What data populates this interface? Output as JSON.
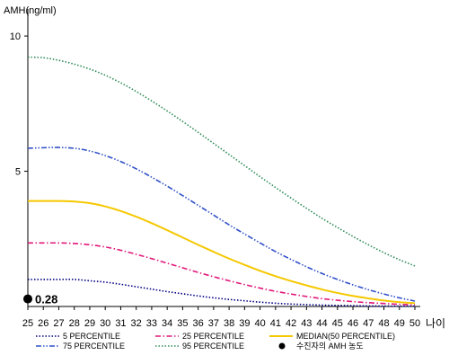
{
  "chart_data": {
    "type": "line",
    "ylabel": "AMH(ng/ml)",
    "xlabel": "나이",
    "ylim": [
      0,
      11
    ],
    "yticks": [
      5,
      10
    ],
    "xlim": [
      25,
      50
    ],
    "x": [
      25,
      26,
      27,
      28,
      29,
      30,
      31,
      32,
      33,
      34,
      35,
      36,
      37,
      38,
      39,
      40,
      41,
      42,
      43,
      44,
      45,
      46,
      47,
      48,
      49,
      50
    ],
    "grid": false,
    "legend_position": "bottom",
    "series": [
      {
        "name": "5 PERCENTILE",
        "color": "#000080",
        "dash": "dotted",
        "values": [
          1.0,
          1.0,
          1.0,
          1.0,
          0.95,
          0.9,
          0.82,
          0.73,
          0.64,
          0.55,
          0.47,
          0.39,
          0.32,
          0.26,
          0.21,
          0.16,
          0.12,
          0.09,
          0.07,
          0.05,
          0.04,
          0.03,
          0.02,
          0.015,
          0.01,
          0.01
        ]
      },
      {
        "name": "25 PERCENTILE",
        "color": "#e0187a",
        "dash": "dashdot",
        "values": [
          2.35,
          2.35,
          2.35,
          2.33,
          2.28,
          2.2,
          2.08,
          1.93,
          1.77,
          1.6,
          1.43,
          1.26,
          1.1,
          0.95,
          0.81,
          0.68,
          0.56,
          0.46,
          0.37,
          0.29,
          0.23,
          0.18,
          0.14,
          0.11,
          0.08,
          0.06
        ]
      },
      {
        "name": "MEDIAN(50 PERCENTILE)",
        "color": "#f5c800",
        "dash": "solid",
        "values": [
          3.9,
          3.9,
          3.9,
          3.88,
          3.82,
          3.7,
          3.53,
          3.32,
          3.08,
          2.82,
          2.55,
          2.28,
          2.02,
          1.77,
          1.54,
          1.32,
          1.12,
          0.94,
          0.78,
          0.63,
          0.5,
          0.39,
          0.3,
          0.22,
          0.16,
          0.12
        ]
      },
      {
        "name": "75 PERCENTILE",
        "color": "#3050c8",
        "dash": "dashdotdot",
        "values": [
          5.85,
          5.87,
          5.88,
          5.85,
          5.75,
          5.58,
          5.36,
          5.09,
          4.78,
          4.45,
          4.1,
          3.74,
          3.38,
          3.02,
          2.68,
          2.35,
          2.03,
          1.74,
          1.47,
          1.22,
          1.0,
          0.8,
          0.62,
          0.46,
          0.32,
          0.2
        ]
      },
      {
        "name": "95 PERCENTILE",
        "color": "#2e8b57",
        "dash": "dotted",
        "values": [
          9.22,
          9.2,
          9.1,
          8.96,
          8.78,
          8.55,
          8.27,
          7.95,
          7.6,
          7.23,
          6.84,
          6.44,
          6.03,
          5.62,
          5.21,
          4.8,
          4.4,
          4.01,
          3.63,
          3.26,
          2.92,
          2.59,
          2.28,
          1.99,
          1.73,
          1.5
        ]
      }
    ],
    "marker": {
      "name": "수진자의 AMH 농도",
      "x": 25,
      "y": 0.28,
      "label": "0.28",
      "color": "#000000"
    }
  }
}
